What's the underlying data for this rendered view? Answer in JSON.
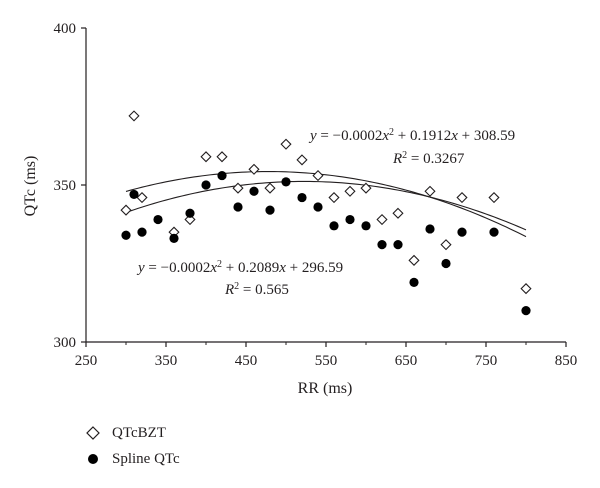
{
  "chart_data": {
    "type": "scatter",
    "xlabel": "RR (ms)",
    "ylabel": "QTc (ms)",
    "xlim": [
      250,
      850
    ],
    "ylim": [
      300,
      400
    ],
    "xticks": [
      250,
      350,
      450,
      550,
      650,
      750,
      850
    ],
    "yticks": [
      300,
      350,
      400
    ],
    "xtick_labels": [
      "250",
      "350",
      "450",
      "550",
      "650",
      "750",
      "850"
    ],
    "ytick_labels": [
      "300",
      "350",
      "400"
    ],
    "grid": false,
    "legend_position": "bottom-left",
    "series": [
      {
        "name": "QTcBZT",
        "marker": "open-diamond",
        "points": [
          [
            300,
            342
          ],
          [
            310,
            372
          ],
          [
            320,
            346
          ],
          [
            360,
            335
          ],
          [
            380,
            339
          ],
          [
            400,
            359
          ],
          [
            420,
            359
          ],
          [
            440,
            349
          ],
          [
            460,
            355
          ],
          [
            480,
            349
          ],
          [
            500,
            363
          ],
          [
            520,
            358
          ],
          [
            540,
            353
          ],
          [
            560,
            346
          ],
          [
            580,
            348
          ],
          [
            600,
            349
          ],
          [
            620,
            339
          ],
          [
            640,
            341
          ],
          [
            660,
            326
          ],
          [
            680,
            348
          ],
          [
            700,
            331
          ],
          [
            720,
            346
          ],
          [
            760,
            346
          ],
          [
            800,
            317
          ]
        ],
        "trendline": {
          "a": -0.0002,
          "b": 0.1912,
          "c": 308.59,
          "x_range": [
            300,
            800
          ]
        }
      },
      {
        "name": "Spline QTc",
        "marker": "filled-circle",
        "points": [
          [
            300,
            334
          ],
          [
            310,
            347
          ],
          [
            320,
            335
          ],
          [
            340,
            339
          ],
          [
            360,
            333
          ],
          [
            380,
            341
          ],
          [
            400,
            350
          ],
          [
            420,
            353
          ],
          [
            440,
            343
          ],
          [
            460,
            348
          ],
          [
            480,
            342
          ],
          [
            500,
            351
          ],
          [
            520,
            346
          ],
          [
            540,
            343
          ],
          [
            560,
            337
          ],
          [
            580,
            339
          ],
          [
            600,
            337
          ],
          [
            620,
            331
          ],
          [
            640,
            331
          ],
          [
            660,
            319
          ],
          [
            680,
            336
          ],
          [
            700,
            325
          ],
          [
            720,
            335
          ],
          [
            760,
            335
          ],
          [
            800,
            310
          ]
        ],
        "trendline": {
          "a": -0.0002,
          "b": 0.2089,
          "c": 296.59,
          "x_range": [
            300,
            800
          ]
        }
      }
    ],
    "annotations": {
      "bzt_equation_lhs": "y = −0.0002",
      "bzt_equation_rhs": " + 0.1912",
      "bzt_equation_tail": " + 308.59",
      "bzt_r2_value": " = 0.3267",
      "spline_equation_lhs": "y = −0.0002",
      "spline_equation_rhs": " + 0.2089",
      "spline_equation_tail": " + 296.59",
      "spline_r2_value": " = 0.565",
      "var_x": "x",
      "var_r": "R",
      "exponent": "2"
    }
  },
  "colors": {
    "axis": "#231f20",
    "text": "#231f20",
    "marker_fill": "#000000",
    "open_marker_fill": "#ffffff"
  }
}
